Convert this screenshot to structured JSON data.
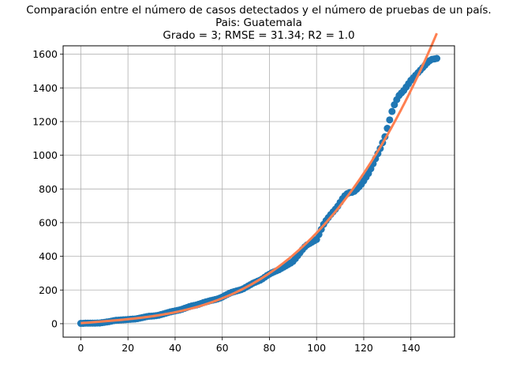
{
  "chart_data": {
    "type": "scatter",
    "title": [
      "Comparación entre el número de casos detectados y el número de pruebas de un país.",
      "Pais: Guatemala",
      "Grado = 3; RMSE = 31.34; R2 = 1.0"
    ],
    "xlabel": "",
    "ylabel": "",
    "xlim": [
      -7.5,
      158.5
    ],
    "ylim": [
      -80,
      1650
    ],
    "xticks": [
      0,
      20,
      40,
      60,
      80,
      100,
      120,
      140
    ],
    "yticks": [
      0,
      200,
      400,
      600,
      800,
      1000,
      1200,
      1400,
      1600
    ],
    "grid": true,
    "series": [
      {
        "kind": "scatter",
        "color": "#1f77b4",
        "x": [
          0,
          1,
          2,
          3,
          4,
          5,
          6,
          7,
          8,
          9,
          10,
          11,
          12,
          13,
          14,
          15,
          16,
          17,
          18,
          19,
          20,
          21,
          22,
          23,
          24,
          25,
          26,
          27,
          28,
          29,
          30,
          31,
          32,
          33,
          34,
          35,
          36,
          37,
          38,
          39,
          40,
          41,
          42,
          43,
          44,
          45,
          46,
          47,
          48,
          49,
          50,
          51,
          52,
          53,
          54,
          55,
          56,
          57,
          58,
          59,
          60,
          61,
          62,
          63,
          64,
          65,
          66,
          67,
          68,
          69,
          70,
          71,
          72,
          73,
          74,
          75,
          76,
          77,
          78,
          79,
          80,
          81,
          82,
          83,
          84,
          85,
          86,
          87,
          88,
          89,
          90,
          91,
          92,
          93,
          94,
          95,
          96,
          97,
          98,
          99,
          100,
          101,
          102,
          103,
          104,
          105,
          106,
          107,
          108,
          109,
          110,
          111,
          112,
          113,
          114,
          115,
          116,
          117,
          118,
          119,
          120,
          121,
          122,
          123,
          124,
          125,
          126,
          127,
          128,
          129,
          130,
          131,
          132,
          133,
          134,
          135,
          136,
          137,
          138,
          139,
          140,
          141,
          142,
          143,
          144,
          145,
          146,
          147,
          148,
          149,
          150,
          151
        ],
        "y": [
          2,
          2,
          3,
          3,
          3,
          3,
          3,
          4,
          4,
          6,
          8,
          10,
          12,
          15,
          18,
          20,
          21,
          22,
          23,
          24,
          25,
          26,
          27,
          28,
          30,
          33,
          36,
          39,
          42,
          44,
          45,
          46,
          48,
          50,
          54,
          58,
          62,
          66,
          70,
          73,
          76,
          79,
          82,
          86,
          91,
          96,
          101,
          105,
          108,
          111,
          115,
          120,
          125,
          129,
          133,
          137,
          140,
          143,
          147,
          152,
          158,
          166,
          173,
          180,
          186,
          190,
          194,
          198,
          202,
          208,
          216,
          224,
          232,
          240,
          246,
          252,
          258,
          266,
          276,
          286,
          294,
          302,
          308,
          314,
          320,
          328,
          336,
          344,
          352,
          360,
          370,
          386,
          404,
          422,
          440,
          456,
          468,
          476,
          484,
          492,
          500,
          530,
          560,
          590,
          612,
          630,
          648,
          664,
          680,
          698,
          720,
          742,
          760,
          772,
          778,
          780,
          786,
          798,
          812,
          828,
          848,
          870,
          892,
          920,
          950,
          980,
          1010,
          1040,
          1075,
          1110,
          1160,
          1210,
          1260,
          1300,
          1330,
          1355,
          1370,
          1385,
          1405,
          1425,
          1445,
          1460,
          1475,
          1490,
          1505,
          1520,
          1535,
          1550,
          1562,
          1570,
          1572,
          1575
        ]
      },
      {
        "kind": "line",
        "color": "#ff7f50",
        "polynomial_degree": 3
      }
    ]
  }
}
